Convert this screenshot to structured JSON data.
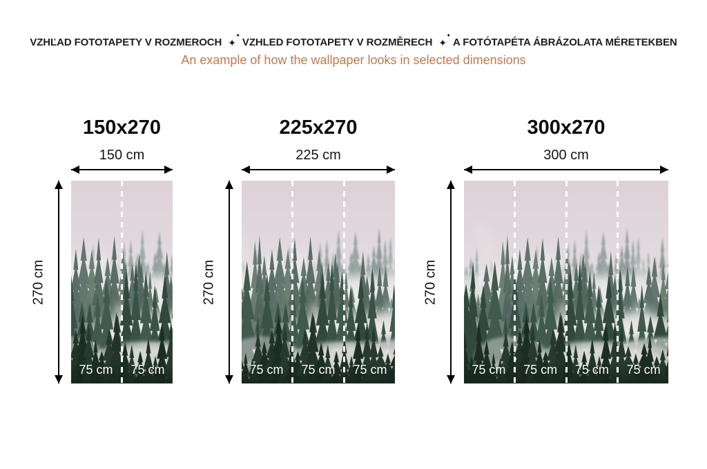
{
  "header": {
    "title_parts": [
      "VZHĽAD FOTOTAPETY V ROZMEROCH",
      "VZHLED FOTOTAPETY V ROZMĚRECH",
      "A FOTÓTAPÉTA ÁBRÁZOLATA MÉRETEKBEN"
    ],
    "sparkle_big": "✦",
    "sparkle_small": "✦",
    "subtitle": "An example of how the wallpaper looks in selected dimensions"
  },
  "colors": {
    "title_text": "#1d1d1d",
    "subtitle_accent": "#c07a4d",
    "arrow": "#000000",
    "cut_line": "#ffffff",
    "segment_label": "#ffffff"
  },
  "wallpaper_palette": {
    "sky_top": "#ddd1d8",
    "sky_mid": "#e2dce0",
    "sky_low": "#cdd0cf",
    "sky_bottom": "#b4bab6",
    "far_trees": [
      "#8d9b97",
      "#83918d",
      "#95a19d"
    ],
    "mid_trees": [
      "#5c7169",
      "#52665f",
      "#66796f"
    ],
    "near_trees": [
      "#395247",
      "#31483e",
      "#415a4e"
    ],
    "front_trees": [
      "#223429",
      "#1c2d24",
      "#283a2f"
    ],
    "fog": "#eceaea",
    "bottom_dark": "#16251e"
  },
  "panels": [
    {
      "name": "150x270",
      "title": "150x270",
      "width_label": "150 cm",
      "height_label": "270 cm",
      "segments": [
        "75 cm",
        "75 cm"
      ]
    },
    {
      "name": "225x270",
      "title": "225x270",
      "width_label": "225 cm",
      "height_label": "270 cm",
      "segments": [
        "75 cm",
        "75 cm",
        "75 cm"
      ]
    },
    {
      "name": "300x270",
      "title": "300x270",
      "width_label": "300 cm",
      "height_label": "270 cm",
      "segments": [
        "75 cm",
        "75 cm",
        "75 cm",
        "75 cm"
      ]
    }
  ]
}
